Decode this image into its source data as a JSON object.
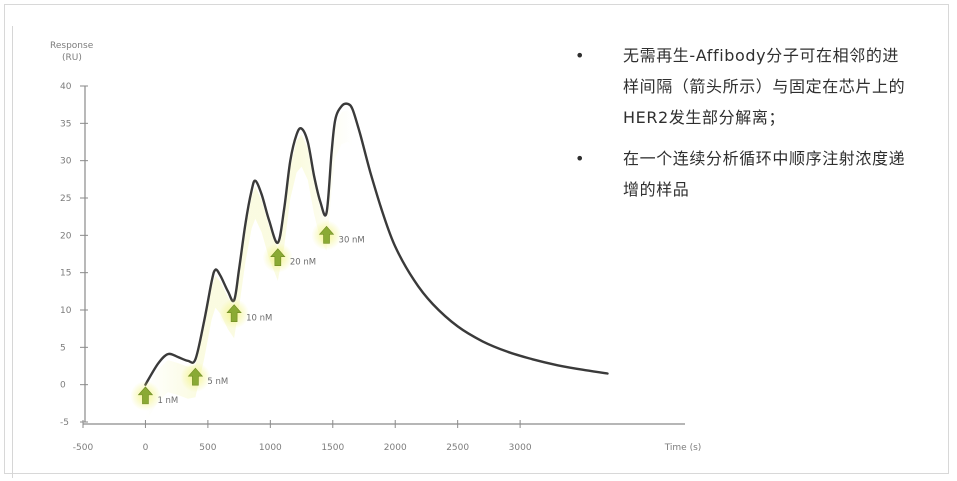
{
  "chart_data": {
    "type": "line",
    "ylabel": "Response\n(RU)",
    "xlabel": "Time (s)",
    "xlim": [
      -500,
      4000
    ],
    "ylim": [
      -5,
      40
    ],
    "x_ticks": [
      "-500",
      "0",
      "500",
      "1000",
      "1500",
      "2000",
      "2500",
      "3000",
      "Time (s)"
    ],
    "y_ticks": [
      "40",
      "35",
      "30",
      "25",
      "20",
      "15",
      "10",
      "5",
      "0",
      "-5"
    ],
    "grid": false,
    "series": [
      {
        "points": [
          [
            0,
            0
          ],
          [
            100,
            2.8
          ],
          [
            180,
            4.1
          ],
          [
            260,
            3.7
          ],
          [
            340,
            3.2
          ],
          [
            400,
            3.4
          ],
          [
            470,
            8.5
          ],
          [
            530,
            13.8
          ],
          [
            560,
            15.4
          ],
          [
            600,
            14.6
          ],
          [
            660,
            12.5
          ],
          [
            710,
            11.3
          ],
          [
            750,
            15.5
          ],
          [
            800,
            21.5
          ],
          [
            850,
            26.0
          ],
          [
            880,
            27.3
          ],
          [
            930,
            25.5
          ],
          [
            990,
            22.0
          ],
          [
            1060,
            19.0
          ],
          [
            1110,
            23.5
          ],
          [
            1160,
            30.0
          ],
          [
            1210,
            33.5
          ],
          [
            1250,
            34.3
          ],
          [
            1300,
            32.5
          ],
          [
            1350,
            28.0
          ],
          [
            1400,
            24.5
          ],
          [
            1450,
            23.0
          ],
          [
            1490,
            31.0
          ],
          [
            1520,
            35.5
          ],
          [
            1570,
            37.3
          ],
          [
            1620,
            37.6
          ],
          [
            1660,
            36.8
          ],
          [
            1720,
            33.5
          ],
          [
            1800,
            28.5
          ],
          [
            1900,
            23.0
          ],
          [
            2000,
            18.5
          ],
          [
            2150,
            14.0
          ],
          [
            2300,
            10.8
          ],
          [
            2500,
            7.8
          ],
          [
            2700,
            5.8
          ],
          [
            2900,
            4.4
          ],
          [
            3100,
            3.4
          ],
          [
            3300,
            2.6
          ],
          [
            3500,
            2.0
          ],
          [
            3700,
            1.5
          ]
        ]
      }
    ],
    "injections": [
      {
        "x": 0,
        "y": -1.5,
        "label": "1 nM"
      },
      {
        "x": 400,
        "y": 1.0,
        "label": "5 nM"
      },
      {
        "x": 710,
        "y": 9.5,
        "label": "10 nM"
      },
      {
        "x": 1060,
        "y": 17.0,
        "label": "20 nM"
      },
      {
        "x": 1450,
        "y": 20.0,
        "label": "30 nM"
      }
    ],
    "colors": {
      "line": "#3a3a3a",
      "arrow_fill": "#8aaa34",
      "arrow_glow": "#f2f37e",
      "axis": "#8a8a8a"
    }
  },
  "notes": [
    {
      "bullet": "•",
      "text": "无需再生-Affibody分子可在相邻的进样间隔（箭头所示）与固定在芯片上的HER2发生部分解离；"
    },
    {
      "bullet": "•",
      "text": "在一个连续分析循环中顺序注射浓度递增的样品"
    }
  ]
}
